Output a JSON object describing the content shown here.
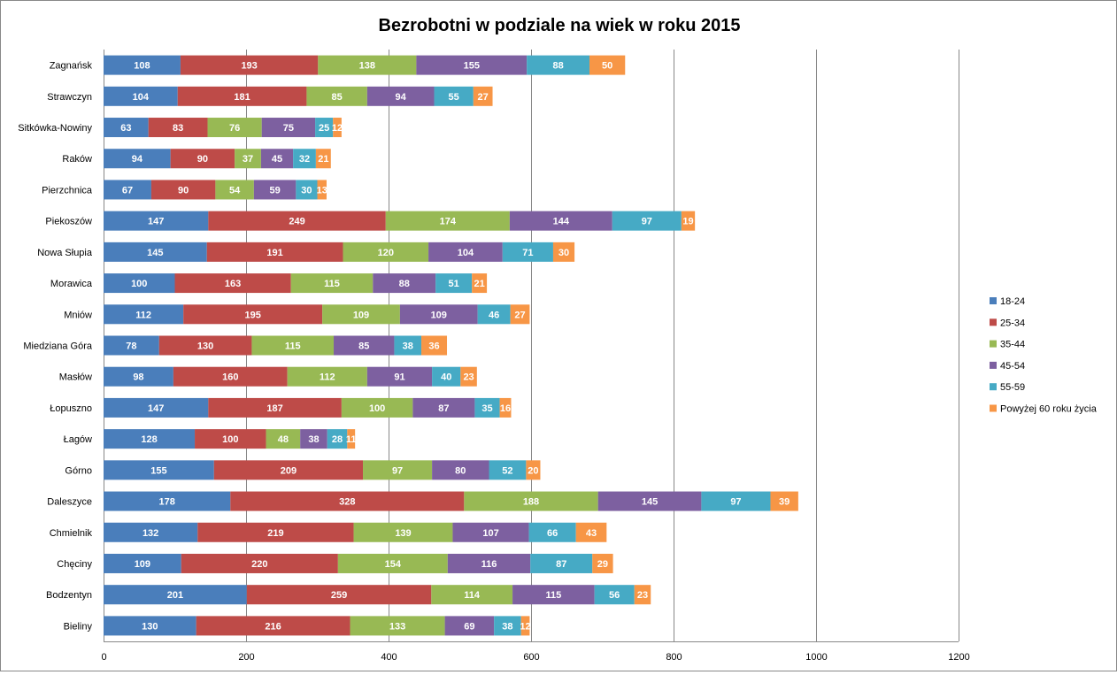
{
  "chart_data": {
    "type": "bar",
    "orientation": "horizontal",
    "stacked": true,
    "title": "Bezrobotni w podziale na wiek w roku 2015",
    "xlabel": "",
    "ylabel": "",
    "xlim": [
      0,
      1200
    ],
    "xticks": [
      "0",
      "200",
      "400",
      "600",
      "800",
      "1000",
      "1200"
    ],
    "grid": true,
    "legend": "right",
    "categories": [
      "Zagnańsk",
      "Strawczyn",
      "Sitkówka-Nowiny",
      "Raków",
      "Pierzchnica",
      "Piekoszów",
      "Nowa Słupia",
      "Morawica",
      "Mniów",
      "Miedziana Góra",
      "Masłów",
      "Łopuszno",
      "Łagów",
      "Górno",
      "Daleszyce",
      "Chmielnik",
      "Chęciny",
      "Bodzentyn",
      "Bieliny"
    ],
    "series": [
      {
        "name": "18-24",
        "color": "#4a7ebb",
        "values": [
          108,
          104,
          63,
          94,
          67,
          147,
          145,
          100,
          112,
          78,
          98,
          147,
          128,
          155,
          178,
          132,
          109,
          201,
          130
        ]
      },
      {
        "name": "25-34",
        "color": "#be4b48",
        "values": [
          193,
          181,
          83,
          90,
          90,
          249,
          191,
          163,
          195,
          130,
          160,
          187,
          100,
          209,
          328,
          219,
          220,
          259,
          216
        ]
      },
      {
        "name": "35-44",
        "color": "#98b954",
        "values": [
          138,
          85,
          76,
          37,
          54,
          174,
          120,
          115,
          109,
          115,
          112,
          100,
          48,
          97,
          188,
          139,
          154,
          114,
          133
        ]
      },
      {
        "name": "45-54",
        "color": "#7d60a0",
        "values": [
          155,
          94,
          75,
          45,
          59,
          144,
          104,
          88,
          109,
          85,
          91,
          87,
          38,
          80,
          145,
          107,
          116,
          115,
          69
        ]
      },
      {
        "name": "55-59",
        "color": "#46aac5",
        "values": [
          88,
          55,
          25,
          32,
          30,
          97,
          71,
          51,
          46,
          38,
          40,
          35,
          28,
          52,
          97,
          66,
          87,
          56,
          38
        ]
      },
      {
        "name": "Powyżej 60 roku życia",
        "color": "#f79646",
        "values": [
          50,
          27,
          12,
          21,
          13,
          19,
          30,
          21,
          27,
          36,
          23,
          16,
          11,
          20,
          39,
          43,
          29,
          23,
          12
        ]
      }
    ]
  }
}
